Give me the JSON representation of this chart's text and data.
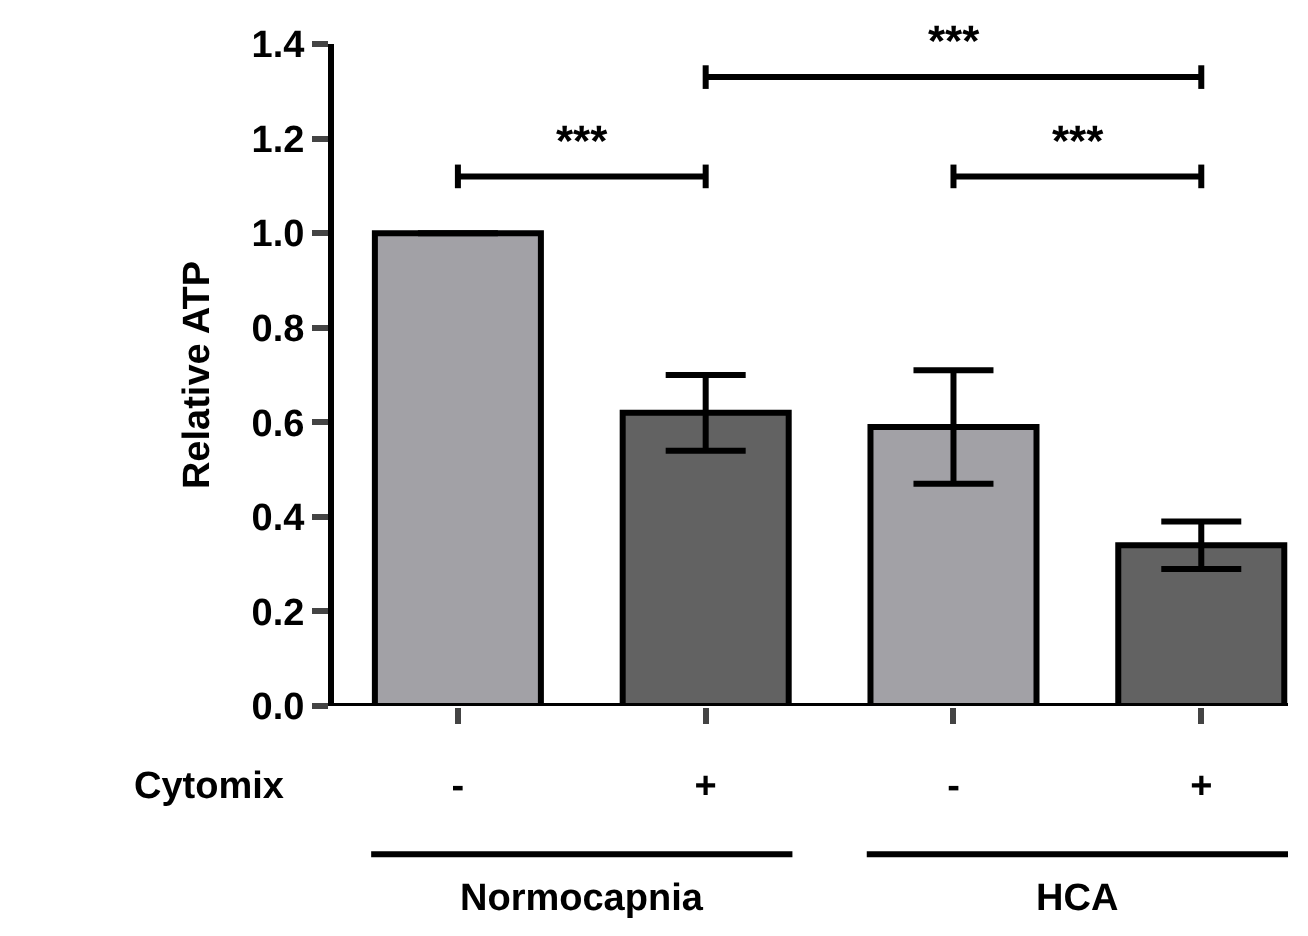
{
  "chart_data": {
    "type": "bar",
    "ylabel": "Relative ATP",
    "categories": [
      "-",
      "+",
      "-",
      "+"
    ],
    "values": [
      1.0,
      0.62,
      0.59,
      0.34
    ],
    "colors": [
      "#a2a1a6",
      "#626262",
      "#a2a1a6",
      "#626262"
    ],
    "errors": [
      null,
      0.08,
      0.12,
      0.05
    ],
    "ylim": [
      0,
      1.4
    ],
    "yticks": [
      {
        "value": 0,
        "label": "0.0"
      },
      0.2,
      0.4,
      0.6,
      0.8,
      {
        "value": 1,
        "label": "1.0"
      },
      1.2,
      1.4
    ],
    "grid": false,
    "annotations": [
      "***",
      "***",
      "***",
      "Cytomix",
      "Normocapnia",
      "HCA"
    ]
  }
}
